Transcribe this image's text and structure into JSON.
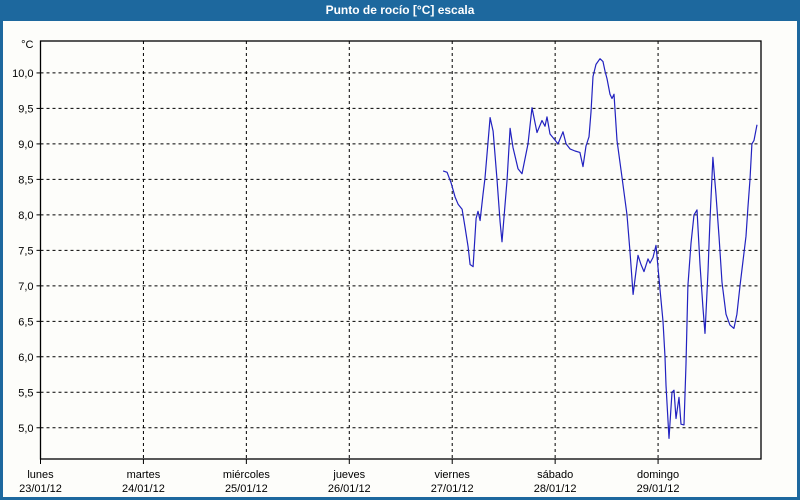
{
  "window": {
    "title": "Punto de rocío [°C] escala"
  },
  "colors": {
    "titlebar_bg": "#1d689e",
    "titlebar_text": "#ffffff",
    "window_border": "#1d689e",
    "plot_bg": "#fdfdfa",
    "grid": "#000000",
    "series_line": "#2222c0"
  },
  "chart_data": {
    "type": "line",
    "title": "Punto de rocío [°C] escala",
    "grid": "dashed",
    "legend": "none",
    "y_axis": {
      "unit_label": "°C",
      "range": [
        4.56,
        10.45
      ],
      "ticks": [
        {
          "value": 10.0,
          "label": "10,0"
        },
        {
          "value": 9.5,
          "label": "9,5"
        },
        {
          "value": 9.0,
          "label": "9,0"
        },
        {
          "value": 8.5,
          "label": "8,5"
        },
        {
          "value": 8.0,
          "label": "8,0"
        },
        {
          "value": 7.5,
          "label": "7,5"
        },
        {
          "value": 7.0,
          "label": "7,0"
        },
        {
          "value": 6.5,
          "label": "6,5"
        },
        {
          "value": 6.0,
          "label": "6,0"
        },
        {
          "value": 5.5,
          "label": "5,5"
        },
        {
          "value": 5.0,
          "label": "5,0"
        }
      ]
    },
    "x_axis": {
      "range_days": [
        0,
        7
      ],
      "ticks": [
        {
          "day": 0,
          "name": "lunes",
          "date": "23/01/12"
        },
        {
          "day": 1,
          "name": "martes",
          "date": "24/01/12"
        },
        {
          "day": 2,
          "name": "miércoles",
          "date": "25/01/12"
        },
        {
          "day": 3,
          "name": "jueves",
          "date": "26/01/12"
        },
        {
          "day": 4,
          "name": "viernes",
          "date": "27/01/12"
        },
        {
          "day": 5,
          "name": "sábado",
          "date": "28/01/12"
        },
        {
          "day": 6,
          "name": "domingo",
          "date": "29/01/12"
        }
      ]
    },
    "series": [
      {
        "name": "Punto de rocío",
        "color": "#2222c0",
        "points": [
          [
            3.911,
            8.62
          ],
          [
            3.95,
            8.6
          ],
          [
            3.989,
            8.45
          ],
          [
            4.028,
            8.25
          ],
          [
            4.057,
            8.15
          ],
          [
            4.096,
            8.08
          ],
          [
            4.125,
            7.82
          ],
          [
            4.154,
            7.55
          ],
          [
            4.174,
            7.3
          ],
          [
            4.203,
            7.27
          ],
          [
            4.232,
            7.95
          ],
          [
            4.251,
            8.05
          ],
          [
            4.271,
            7.92
          ],
          [
            4.3,
            8.3
          ],
          [
            4.319,
            8.52
          ],
          [
            4.368,
            9.37
          ],
          [
            4.397,
            9.18
          ],
          [
            4.435,
            8.5
          ],
          [
            4.465,
            7.9
          ],
          [
            4.484,
            7.62
          ],
          [
            4.533,
            8.5
          ],
          [
            4.562,
            9.22
          ],
          [
            4.591,
            8.95
          ],
          [
            4.639,
            8.65
          ],
          [
            4.678,
            8.58
          ],
          [
            4.736,
            9.0
          ],
          [
            4.775,
            9.51
          ],
          [
            4.824,
            9.16
          ],
          [
            4.872,
            9.33
          ],
          [
            4.901,
            9.25
          ],
          [
            4.921,
            9.38
          ],
          [
            4.95,
            9.14
          ],
          [
            4.989,
            9.07
          ],
          [
            5.028,
            9.0
          ],
          [
            5.076,
            9.17
          ],
          [
            5.106,
            9.0
          ],
          [
            5.144,
            8.93
          ],
          [
            5.193,
            8.9
          ],
          [
            5.241,
            8.88
          ],
          [
            5.271,
            8.68
          ],
          [
            5.3,
            8.97
          ],
          [
            5.329,
            9.1
          ],
          [
            5.348,
            9.45
          ],
          [
            5.368,
            9.95
          ],
          [
            5.397,
            10.12
          ],
          [
            5.436,
            10.2
          ],
          [
            5.465,
            10.16
          ],
          [
            5.485,
            10.02
          ],
          [
            5.504,
            9.92
          ],
          [
            5.533,
            9.7
          ],
          [
            5.552,
            9.64
          ],
          [
            5.572,
            9.7
          ],
          [
            5.601,
            9.05
          ],
          [
            5.65,
            8.53
          ],
          [
            5.698,
            8.0
          ],
          [
            5.727,
            7.48
          ],
          [
            5.757,
            6.88
          ],
          [
            5.805,
            7.43
          ],
          [
            5.834,
            7.3
          ],
          [
            5.863,
            7.2
          ],
          [
            5.902,
            7.38
          ],
          [
            5.922,
            7.32
          ],
          [
            5.951,
            7.4
          ],
          [
            5.98,
            7.57
          ],
          [
            6.019,
            6.95
          ],
          [
            6.048,
            6.5
          ],
          [
            6.067,
            6.0
          ],
          [
            6.077,
            5.6
          ],
          [
            6.106,
            4.85
          ],
          [
            6.135,
            5.5
          ],
          [
            6.155,
            5.53
          ],
          [
            6.174,
            5.13
          ],
          [
            6.203,
            5.43
          ],
          [
            6.223,
            5.05
          ],
          [
            6.252,
            5.04
          ],
          [
            6.271,
            5.9
          ],
          [
            6.29,
            7.0
          ],
          [
            6.32,
            7.6
          ],
          [
            6.349,
            8.0
          ],
          [
            6.378,
            8.07
          ],
          [
            6.407,
            7.3
          ],
          [
            6.436,
            6.7
          ],
          [
            6.456,
            6.33
          ],
          [
            6.485,
            7.2
          ],
          [
            6.504,
            7.9
          ],
          [
            6.533,
            8.81
          ],
          [
            6.562,
            8.3
          ],
          [
            6.592,
            7.7
          ],
          [
            6.621,
            7.05
          ],
          [
            6.66,
            6.6
          ],
          [
            6.698,
            6.45
          ],
          [
            6.737,
            6.4
          ],
          [
            6.766,
            6.6
          ],
          [
            6.796,
            7.0
          ],
          [
            6.825,
            7.35
          ],
          [
            6.854,
            7.7
          ],
          [
            6.873,
            8.1
          ],
          [
            6.893,
            8.5
          ],
          [
            6.912,
            9.0
          ],
          [
            6.932,
            9.05
          ],
          [
            6.961,
            9.27
          ]
        ]
      }
    ]
  }
}
